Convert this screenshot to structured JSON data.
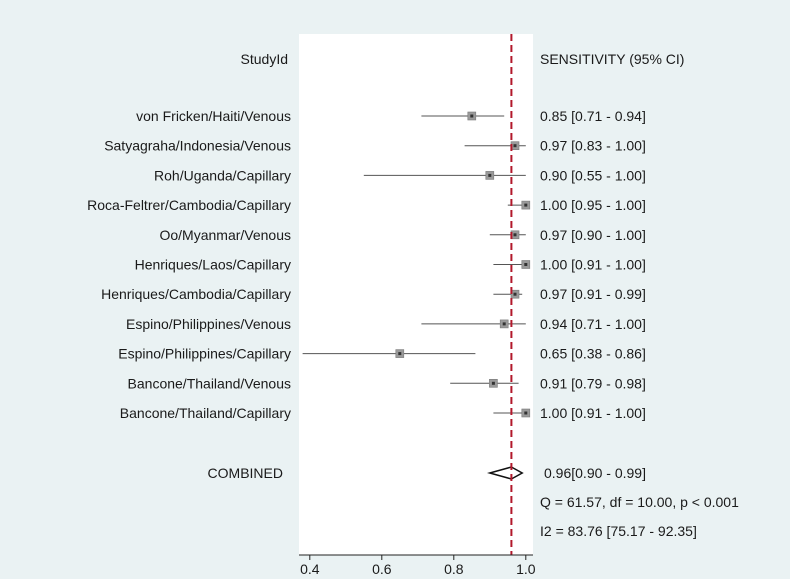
{
  "chart_data": {
    "type": "forest",
    "title": "",
    "left_header": "StudyId",
    "right_header": "SENSITIVITY (95% CI)",
    "xlim": [
      0.37,
      1.02
    ],
    "xticks": [
      0.4,
      0.6,
      0.8,
      1.0
    ],
    "xtick_labels": [
      "0.4",
      "0.6",
      "0.8",
      "1.0"
    ],
    "reference_line": 0.96,
    "studies": [
      {
        "label": "von Fricken/Haiti/Venous",
        "est": 0.85,
        "lo": 0.71,
        "hi": 0.94,
        "ci_text": "0.85 [0.71 - 0.94]"
      },
      {
        "label": "Satyagraha/Indonesia/Venous",
        "est": 0.97,
        "lo": 0.83,
        "hi": 1.0,
        "ci_text": "0.97 [0.83 - 1.00]"
      },
      {
        "label": "Roh/Uganda/Capillary",
        "est": 0.9,
        "lo": 0.55,
        "hi": 1.0,
        "ci_text": "0.90 [0.55 - 1.00]"
      },
      {
        "label": "Roca-Feltrer/Cambodia/Capillary",
        "est": 1.0,
        "lo": 0.95,
        "hi": 1.0,
        "ci_text": "1.00 [0.95 - 1.00]"
      },
      {
        "label": "Oo/Myanmar/Venous",
        "est": 0.97,
        "lo": 0.9,
        "hi": 1.0,
        "ci_text": "0.97 [0.90 - 1.00]"
      },
      {
        "label": "Henriques/Laos/Capillary",
        "est": 1.0,
        "lo": 0.91,
        "hi": 1.0,
        "ci_text": "1.00 [0.91 - 1.00]"
      },
      {
        "label": "Henriques/Cambodia/Capillary",
        "est": 0.97,
        "lo": 0.91,
        "hi": 0.99,
        "ci_text": "0.97 [0.91 - 0.99]"
      },
      {
        "label": "Espino/Philippines/Venous",
        "est": 0.94,
        "lo": 0.71,
        "hi": 1.0,
        "ci_text": "0.94 [0.71 - 1.00]"
      },
      {
        "label": "Espino/Philippines/Capillary",
        "est": 0.65,
        "lo": 0.38,
        "hi": 0.86,
        "ci_text": "0.65 [0.38 - 0.86]"
      },
      {
        "label": "Bancone/Thailand/Venous",
        "est": 0.91,
        "lo": 0.79,
        "hi": 0.98,
        "ci_text": "0.91 [0.79 - 0.98]"
      },
      {
        "label": "Bancone/Thailand/Capillary",
        "est": 1.0,
        "lo": 0.91,
        "hi": 1.0,
        "ci_text": "1.00 [0.91 - 1.00]"
      }
    ],
    "combined": {
      "label": "COMBINED",
      "est": 0.96,
      "lo": 0.9,
      "hi": 0.99,
      "ci_text": "0.96[0.90 - 0.99]"
    },
    "heterogeneity": {
      "q_text": "Q = 61.57, df = 10.00, p",
      "q_p_text": "< 0.001",
      "i2_text": "I2 = 83.76 [75.17 - 92.35]"
    },
    "colors": {
      "background": "#ffffff",
      "plot_panel": "#eaf2f3",
      "reference_line": "#b2182b",
      "marker_fill": "#9a9a9a",
      "marker_center": "#333333",
      "text": "#1a1a1a"
    }
  }
}
